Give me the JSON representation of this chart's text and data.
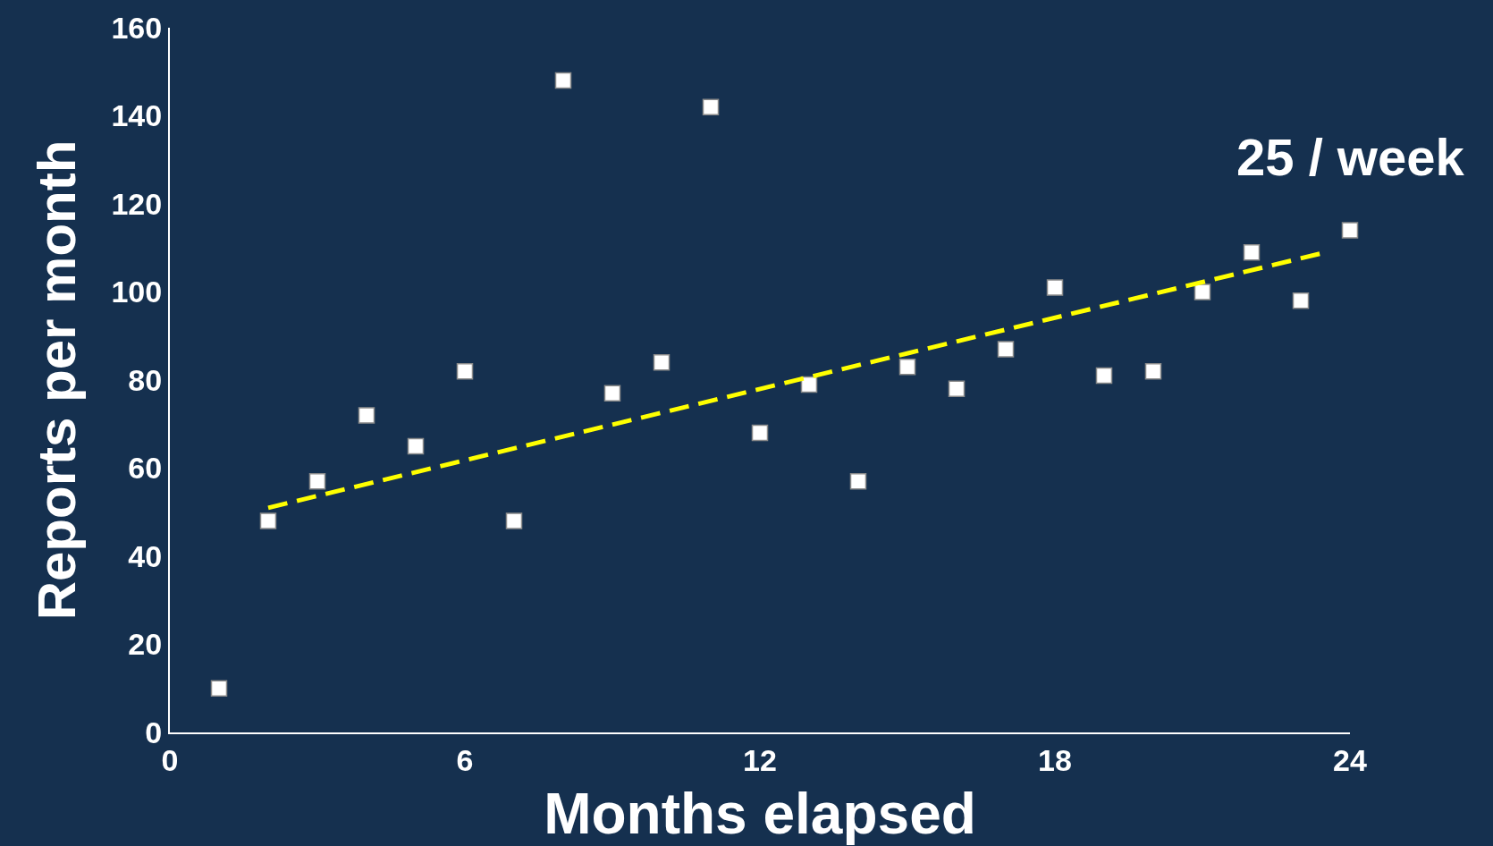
{
  "chart_data": {
    "type": "scatter",
    "xlabel": "Months elapsed",
    "ylabel": "Reports per month",
    "annotations": [
      "25 / week"
    ],
    "series": [
      {
        "color": "#ffffff",
        "marker": "square",
        "x": [
          1,
          2,
          3,
          4,
          5,
          6,
          7,
          8,
          9,
          10,
          11,
          12,
          13,
          14,
          15,
          16,
          17,
          18,
          19,
          20,
          21,
          22,
          23,
          24
        ],
        "values": [
          10,
          48,
          57,
          72,
          65,
          82,
          48,
          148,
          77,
          84,
          142,
          68,
          79,
          57,
          83,
          78,
          87,
          101,
          81,
          82,
          100,
          109,
          98,
          114
        ]
      },
      {
        "type": "line",
        "color": "#ffff00",
        "line_style": "dashed",
        "marker": "none",
        "x": [
          2,
          23.5
        ],
        "values": [
          51,
          109
        ]
      }
    ],
    "xlim": [
      0,
      24
    ],
    "xticks": [
      0,
      6,
      12,
      18,
      24
    ],
    "ylim": [
      0,
      160
    ],
    "yticks": [
      0,
      20,
      40,
      60,
      80,
      100,
      120,
      140,
      160
    ],
    "grid": false
  }
}
